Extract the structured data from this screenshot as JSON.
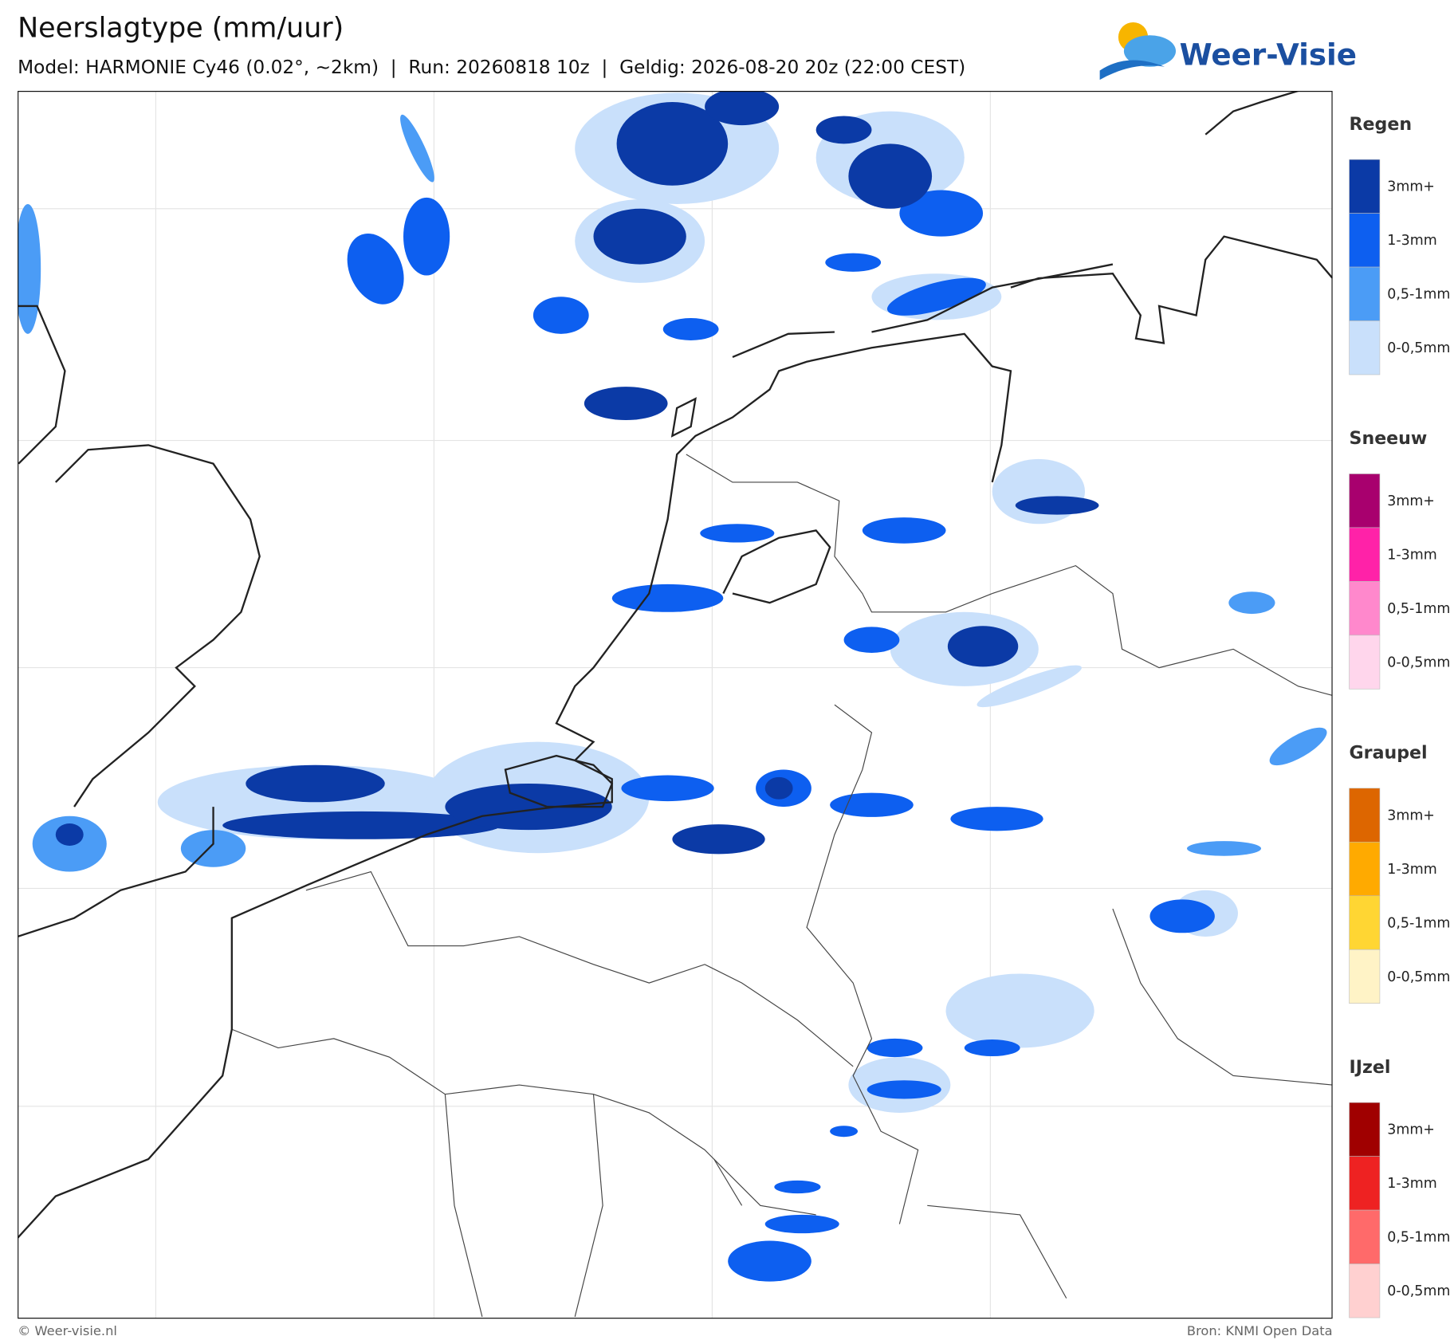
{
  "header": {
    "title": "Neerslagtype (mm/uur)",
    "subtitle": "Model: HARMONIE Cy46 (0.02°, ~2km)  |  Run: 20260818 10z  |  Geldig: 2026-08-20 20z (22:00 CEST)",
    "logo": "Weer-Visie"
  },
  "legend": [
    {
      "title": "Regen",
      "items": [
        {
          "label": "3mm+",
          "color": "#0b3aa6"
        },
        {
          "label": "1-3mm",
          "color": "#0d5ff0"
        },
        {
          "label": "0,5-1mm",
          "color": "#4b9cf6"
        },
        {
          "label": "0-0,5mm",
          "color": "#c9e0fb"
        }
      ]
    },
    {
      "title": "Sneeuw",
      "items": [
        {
          "label": "3mm+",
          "color": "#a8006e"
        },
        {
          "label": "1-3mm",
          "color": "#ff22a8"
        },
        {
          "label": "0,5-1mm",
          "color": "#ff88cc"
        },
        {
          "label": "0-0,5mm",
          "color": "#ffd6ec"
        }
      ]
    },
    {
      "title": "Graupel",
      "items": [
        {
          "label": "3mm+",
          "color": "#dd6600"
        },
        {
          "label": "1-3mm",
          "color": "#ffaa00"
        },
        {
          "label": "0,5-1mm",
          "color": "#ffd633"
        },
        {
          "label": "0-0,5mm",
          "color": "#fff3c6"
        }
      ]
    },
    {
      "title": "IJzel",
      "items": [
        {
          "label": "3mm+",
          "color": "#a00000"
        },
        {
          "label": "1-3mm",
          "color": "#ee2222"
        },
        {
          "label": "0,5-1mm",
          "color": "#ff6a6a"
        },
        {
          "label": "0-0,5mm",
          "color": "#ffd0d0"
        }
      ]
    }
  ],
  "footer": {
    "left": "© Weer-visie.nl",
    "right": "Bron: KNMI Open Data"
  }
}
